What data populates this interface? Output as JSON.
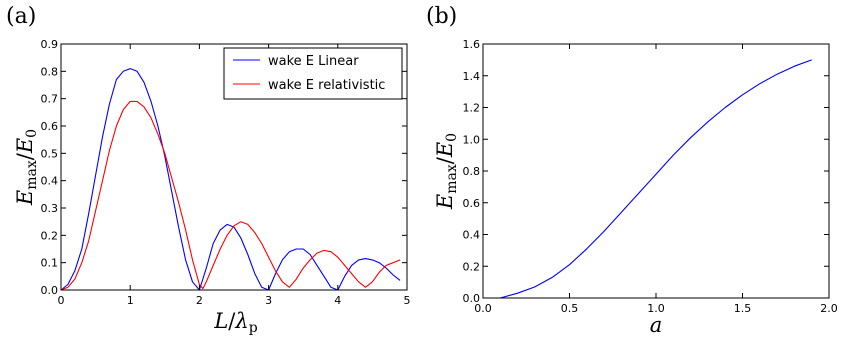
{
  "chart_data": [
    {
      "type": "line",
      "panel_label": "(a)",
      "xlabel": {
        "main": "L",
        "slash": "/",
        "sym": "λ",
        "sub": "p"
      },
      "ylabel": {
        "main": "E",
        "sub": "max",
        "slash": "/",
        "main2": "E",
        "sub2": "0"
      },
      "xlim": [
        0,
        5
      ],
      "ylim": [
        0,
        0.9
      ],
      "xticks": [
        0,
        1,
        2,
        3,
        4,
        5
      ],
      "yticks": [
        0.0,
        0.1,
        0.2,
        0.3,
        0.4,
        0.5,
        0.6,
        0.7,
        0.8,
        0.9
      ],
      "grid": false,
      "legend_position": "top-right",
      "series": [
        {
          "name": "wake E Linear",
          "color": "#0000ff",
          "x": [
            0,
            0.1,
            0.2,
            0.3,
            0.4,
            0.5,
            0.6,
            0.7,
            0.8,
            0.9,
            1.0,
            1.1,
            1.2,
            1.3,
            1.4,
            1.5,
            1.6,
            1.7,
            1.8,
            1.9,
            2.0,
            2.1,
            2.2,
            2.3,
            2.4,
            2.5,
            2.6,
            2.7,
            2.8,
            2.9,
            3.0,
            3.1,
            3.2,
            3.3,
            3.4,
            3.5,
            3.6,
            3.7,
            3.8,
            3.9,
            4.0,
            4.1,
            4.2,
            4.3,
            4.4,
            4.5,
            4.6,
            4.7,
            4.8,
            4.9
          ],
          "y": [
            0.0,
            0.02,
            0.07,
            0.15,
            0.28,
            0.42,
            0.56,
            0.68,
            0.77,
            0.8,
            0.81,
            0.8,
            0.76,
            0.69,
            0.6,
            0.49,
            0.36,
            0.23,
            0.11,
            0.03,
            0.0,
            0.08,
            0.17,
            0.22,
            0.24,
            0.23,
            0.19,
            0.13,
            0.06,
            0.01,
            0.0,
            0.06,
            0.11,
            0.14,
            0.15,
            0.15,
            0.13,
            0.09,
            0.05,
            0.01,
            0.0,
            0.05,
            0.09,
            0.11,
            0.115,
            0.11,
            0.1,
            0.08,
            0.055,
            0.035
          ]
        },
        {
          "name": "wake E relativistic",
          "color": "#ff0000",
          "x": [
            0,
            0.1,
            0.2,
            0.3,
            0.4,
            0.5,
            0.6,
            0.7,
            0.8,
            0.9,
            1.0,
            1.1,
            1.2,
            1.3,
            1.4,
            1.5,
            1.6,
            1.7,
            1.8,
            1.9,
            2.0,
            2.05,
            2.1,
            2.2,
            2.3,
            2.4,
            2.5,
            2.6,
            2.7,
            2.8,
            2.9,
            3.0,
            3.1,
            3.2,
            3.3,
            3.4,
            3.5,
            3.6,
            3.7,
            3.8,
            3.9,
            4.0,
            4.1,
            4.2,
            4.3,
            4.4,
            4.5,
            4.6,
            4.7,
            4.8,
            4.9
          ],
          "y": [
            0.0,
            0.01,
            0.04,
            0.1,
            0.18,
            0.29,
            0.4,
            0.51,
            0.6,
            0.66,
            0.69,
            0.69,
            0.67,
            0.63,
            0.57,
            0.5,
            0.41,
            0.32,
            0.22,
            0.11,
            0.02,
            0.005,
            0.03,
            0.09,
            0.15,
            0.2,
            0.235,
            0.25,
            0.24,
            0.21,
            0.17,
            0.12,
            0.07,
            0.03,
            0.01,
            0.04,
            0.08,
            0.11,
            0.135,
            0.145,
            0.14,
            0.12,
            0.09,
            0.06,
            0.03,
            0.01,
            0.03,
            0.065,
            0.09,
            0.1,
            0.11
          ]
        }
      ]
    },
    {
      "type": "line",
      "panel_label": "(b)",
      "xlabel": {
        "main": "a"
      },
      "ylabel": {
        "main": "E",
        "sub": "max",
        "slash": "/",
        "main2": "E",
        "sub2": "0"
      },
      "xlim": [
        0,
        2.0
      ],
      "ylim": [
        0,
        1.6
      ],
      "xticks": [
        0.0,
        0.5,
        1.0,
        1.5,
        2.0
      ],
      "yticks": [
        0.0,
        0.2,
        0.4,
        0.6,
        0.8,
        1.0,
        1.2,
        1.4,
        1.6
      ],
      "grid": false,
      "series": [
        {
          "color": "#0000ff",
          "x": [
            0.1,
            0.2,
            0.3,
            0.4,
            0.5,
            0.6,
            0.7,
            0.8,
            0.9,
            1.0,
            1.1,
            1.2,
            1.3,
            1.4,
            1.5,
            1.6,
            1.7,
            1.8,
            1.9
          ],
          "y": [
            0.0,
            0.03,
            0.07,
            0.13,
            0.21,
            0.31,
            0.42,
            0.54,
            0.66,
            0.78,
            0.9,
            1.01,
            1.11,
            1.2,
            1.28,
            1.35,
            1.41,
            1.46,
            1.5
          ]
        }
      ]
    }
  ]
}
